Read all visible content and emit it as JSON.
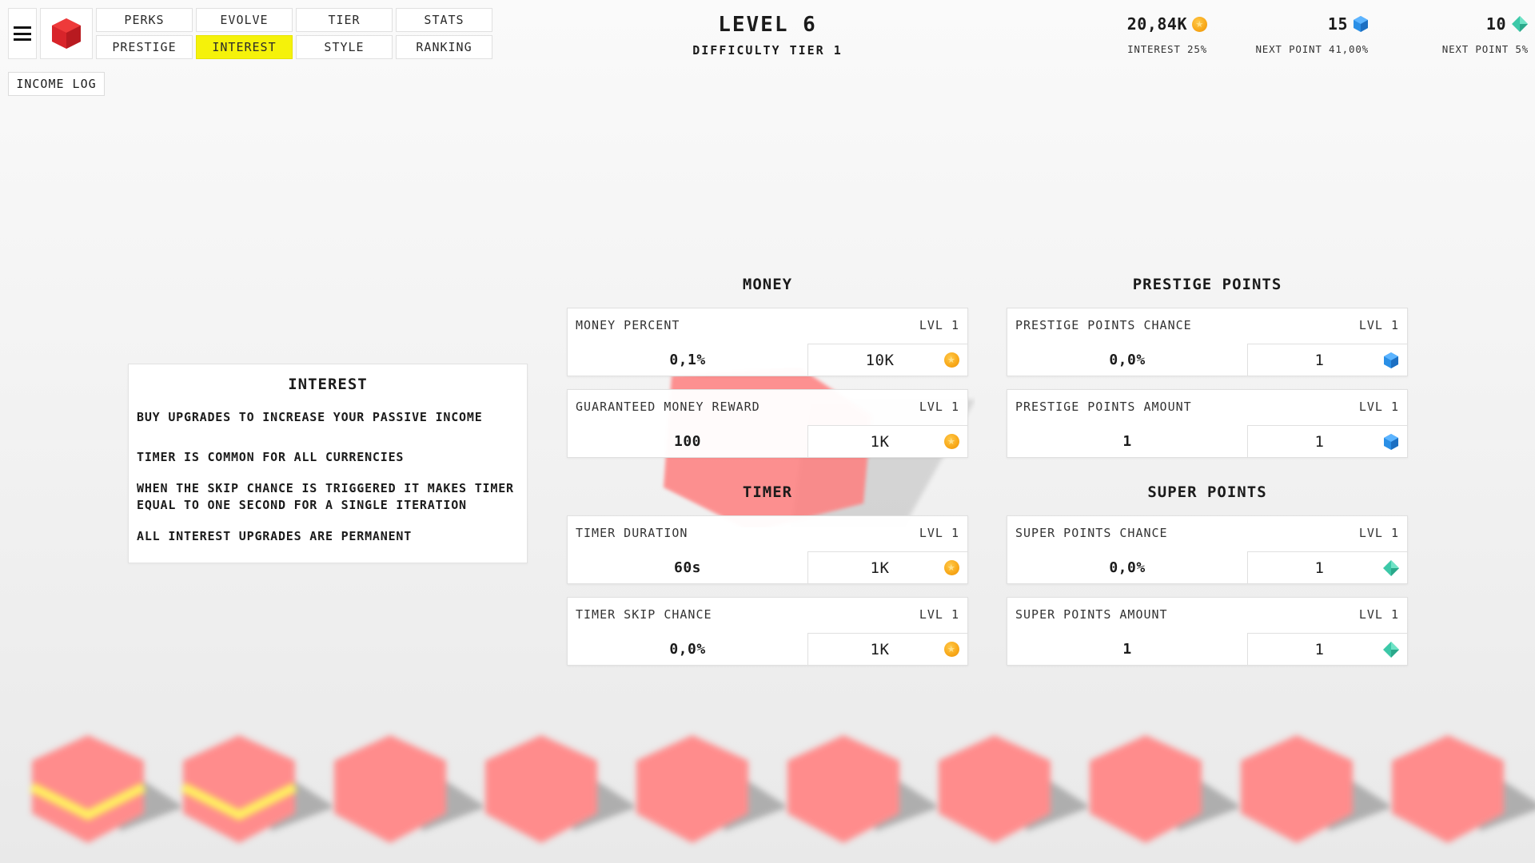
{
  "nav": {
    "row1": [
      "PERKS",
      "EVOLVE",
      "TIER",
      "STATS"
    ],
    "row2": [
      "PRESTIGE",
      "INTEREST",
      "STYLE",
      "RANKING"
    ],
    "active": "INTEREST"
  },
  "income_log_label": "INCOME LOG",
  "header": {
    "level": "LEVEL 6",
    "difficulty": "DIFFICULTY TIER 1"
  },
  "currencies": {
    "money": {
      "value": "20,84K",
      "sub": "INTEREST 25%",
      "icon": "coin-icon"
    },
    "prestige": {
      "value": "15",
      "sub": "NEXT POINT 41,00%",
      "icon": "blue-hexagon-gem-icon"
    },
    "super": {
      "value": "10",
      "sub": "NEXT POINT 5%",
      "icon": "teal-diamond-icon"
    }
  },
  "info": {
    "title": "INTEREST",
    "lines": [
      "BUY UPGRADES TO INCREASE YOUR PASSIVE INCOME",
      "TIMER IS COMMON FOR ALL CURRENCIES",
      "WHEN THE SKIP CHANCE IS TRIGGERED IT MAKES TIMER EQUAL TO ONE SECOND FOR A SINGLE ITERATION",
      "ALL INTEREST UPGRADES ARE PERMANENT"
    ]
  },
  "sections": {
    "money": {
      "title": "MONEY",
      "cards": [
        {
          "label": "MONEY PERCENT",
          "level": "LVL 1",
          "value": "0,1%",
          "cost": "10K",
          "icon": "coin-icon"
        },
        {
          "label": "GUARANTEED MONEY REWARD",
          "level": "LVL 1",
          "value": "100",
          "cost": "1K",
          "icon": "coin-icon"
        }
      ]
    },
    "timer": {
      "title": "TIMER",
      "cards": [
        {
          "label": "TIMER DURATION",
          "level": "LVL 1",
          "value": "60s",
          "cost": "1K",
          "icon": "coin-icon"
        },
        {
          "label": "TIMER SKIP CHANCE",
          "level": "LVL 1",
          "value": "0,0%",
          "cost": "1K",
          "icon": "coin-icon"
        }
      ]
    },
    "prestige": {
      "title": "PRESTIGE POINTS",
      "cards": [
        {
          "label": "PRESTIGE POINTS CHANCE",
          "level": "LVL 1",
          "value": "0,0%",
          "cost": "1",
          "icon": "blue-hexagon-gem-icon"
        },
        {
          "label": "PRESTIGE POINTS AMOUNT",
          "level": "LVL 1",
          "value": "1",
          "cost": "1",
          "icon": "blue-hexagon-gem-icon"
        }
      ]
    },
    "super": {
      "title": "SUPER POINTS",
      "cards": [
        {
          "label": "SUPER POINTS CHANCE",
          "level": "LVL 1",
          "value": "0,0%",
          "cost": "1",
          "icon": "teal-diamond-icon"
        },
        {
          "label": "SUPER POINTS AMOUNT",
          "level": "LVL 1",
          "value": "1",
          "cost": "1",
          "icon": "teal-diamond-icon"
        }
      ]
    }
  },
  "colors": {
    "active_tab": "#f5f20a",
    "cube_red": "#d8242a",
    "cube_pink": "#ff8c8c",
    "cube_stripe": "#ffef60",
    "coin": "#f8a818",
    "prestige_gem": "#2a8fe6",
    "super_gem": "#3cc8a8"
  }
}
